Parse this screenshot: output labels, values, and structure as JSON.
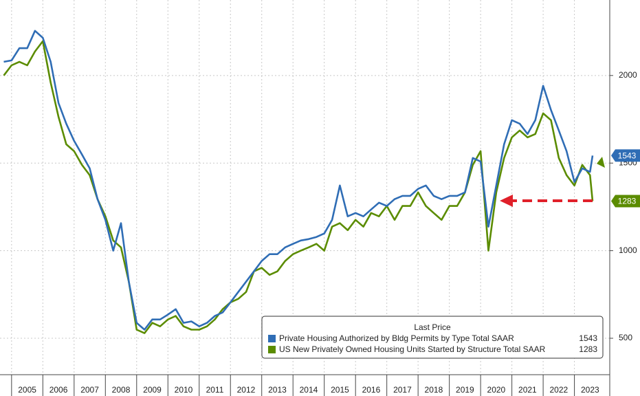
{
  "chart_data": {
    "type": "line",
    "legend_title": "Last Price",
    "x": [
      2004.75,
      2005,
      2005.25,
      2005.5,
      2005.75,
      2006,
      2006.25,
      2006.5,
      2006.75,
      2007,
      2007.25,
      2007.5,
      2007.75,
      2008,
      2008.25,
      2008.5,
      2008.75,
      2009,
      2009.25,
      2009.5,
      2009.75,
      2010,
      2010.25,
      2010.5,
      2010.75,
      2011,
      2011.25,
      2011.5,
      2011.75,
      2012,
      2012.25,
      2012.5,
      2012.75,
      2013,
      2013.25,
      2013.5,
      2013.75,
      2014,
      2014.25,
      2014.5,
      2014.75,
      2015,
      2015.25,
      2015.5,
      2015.75,
      2016,
      2016.25,
      2016.5,
      2016.75,
      2017,
      2017.25,
      2017.5,
      2017.75,
      2018,
      2018.25,
      2018.5,
      2018.75,
      2019,
      2019.25,
      2019.5,
      2019.75,
      2020,
      2020.25,
      2020.5,
      2020.75,
      2021,
      2021.25,
      2021.5,
      2021.75,
      2022,
      2022.25,
      2022.5,
      2022.75,
      2023,
      2023.25,
      2023.5,
      2023.58
    ],
    "series": [
      {
        "name": "Private Housing Authorized by Bldg Permits by Type Total SAAR",
        "color": "#2f6db5",
        "values": [
          2078,
          2086,
          2156,
          2156,
          2255,
          2215,
          2078,
          1843,
          1725,
          1627,
          1549,
          1470,
          1294,
          1176,
          1000,
          1157,
          823,
          588,
          549,
          607,
          607,
          635,
          666,
          588,
          596,
          568,
          588,
          627,
          647,
          705,
          764,
          823,
          882,
          941,
          980,
          980,
          1019,
          1039,
          1058,
          1066,
          1078,
          1098,
          1176,
          1372,
          1196,
          1215,
          1196,
          1235,
          1274,
          1255,
          1294,
          1313,
          1313,
          1353,
          1372,
          1313,
          1294,
          1313,
          1313,
          1333,
          1529,
          1509,
          1137,
          1372,
          1607,
          1745,
          1725,
          1666,
          1745,
          1941,
          1803,
          1686,
          1568,
          1392,
          1470,
          1450,
          1543
        ]
      },
      {
        "name": "US New Privately Owned Housing Units Started by Structure Total SAAR",
        "color": "#5b8c00",
        "values": [
          2000,
          2058,
          2078,
          2058,
          2137,
          2196,
          1960,
          1764,
          1607,
          1568,
          1490,
          1431,
          1294,
          1196,
          1058,
          1019,
          823,
          549,
          529,
          588,
          568,
          607,
          627,
          568,
          549,
          549,
          568,
          607,
          666,
          705,
          725,
          764,
          882,
          902,
          862,
          882,
          941,
          980,
          1000,
          1019,
          1039,
          1000,
          1137,
          1157,
          1117,
          1176,
          1137,
          1215,
          1196,
          1255,
          1176,
          1255,
          1255,
          1333,
          1255,
          1215,
          1176,
          1255,
          1255,
          1333,
          1490,
          1568,
          1000,
          1333,
          1529,
          1647,
          1686,
          1647,
          1666,
          1784,
          1745,
          1529,
          1431,
          1372,
          1490,
          1431,
          1283
        ]
      }
    ],
    "xlim": [
      2004.63,
      2024.13
    ],
    "xticks": [
      2005,
      2006,
      2007,
      2008,
      2009,
      2010,
      2011,
      2012,
      2013,
      2014,
      2015,
      2016,
      2017,
      2018,
      2019,
      2020,
      2021,
      2022,
      2023
    ],
    "ylim": [
      292,
      2431
    ],
    "yticks": [
      500,
      1000,
      1500,
      2000
    ],
    "grid": true
  }
}
